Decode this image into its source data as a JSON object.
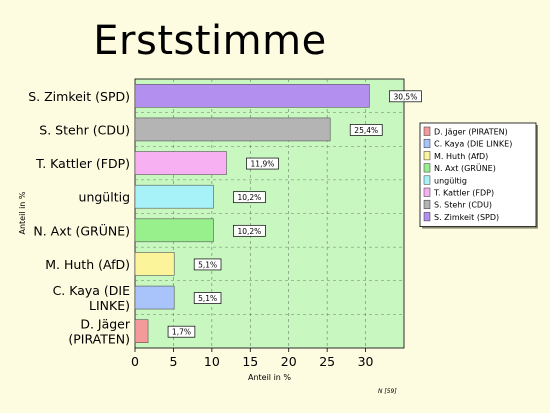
{
  "page": {
    "title": "Erststimme",
    "footnote": "N [59]"
  },
  "chart_data": {
    "type": "bar",
    "orientation": "horizontal",
    "title": "Erststimme",
    "xlabel": "Anteil in %",
    "ylabel": "Anteil in %",
    "xlim": [
      0,
      35
    ],
    "xticks": [
      0,
      5,
      10,
      15,
      20,
      25,
      30
    ],
    "grid": true,
    "legend_position": "right",
    "plot_background": "#c8f7c0",
    "bars": [
      {
        "label": [
          "S. Zimkeit (SPD)"
        ],
        "value": 30.5,
        "value_label": "30,5%",
        "color": "#b38ff0"
      },
      {
        "label": [
          "S. Stehr (CDU)"
        ],
        "value": 25.4,
        "value_label": "25,4%",
        "color": "#b4b4b4"
      },
      {
        "label": [
          "T. Kattler (FDP)"
        ],
        "value": 11.9,
        "value_label": "11,9%",
        "color": "#f7b0f2"
      },
      {
        "label": [
          "ungültig"
        ],
        "value": 10.2,
        "value_label": "10,2%",
        "color": "#a6f2f8"
      },
      {
        "label": [
          "N. Axt (GRÜNE)"
        ],
        "value": 10.2,
        "value_label": "10,2%",
        "color": "#98f08c"
      },
      {
        "label": [
          "M. Huth (AfD)"
        ],
        "value": 5.1,
        "value_label": "5,1%",
        "color": "#fbf49a"
      },
      {
        "label": [
          "C. Kaya (DIE",
          "LINKE)"
        ],
        "value": 5.1,
        "value_label": "5,1%",
        "color": "#a8c4fa"
      },
      {
        "label": [
          "D. Jäger",
          "(PIRATEN)"
        ],
        "value": 1.7,
        "value_label": "1,7%",
        "color": "#f59a9a"
      }
    ],
    "legend": [
      {
        "label": "D. Jäger (PIRATEN)",
        "color": "#f59a9a"
      },
      {
        "label": "C. Kaya (DIE LINKE)",
        "color": "#a8c4fa"
      },
      {
        "label": "M. Huth (AfD)",
        "color": "#fbf49a"
      },
      {
        "label": "N. Axt (GRÜNE)",
        "color": "#98f08c"
      },
      {
        "label": "ungültig",
        "color": "#a6f2f8"
      },
      {
        "label": "T. Kattler (FDP)",
        "color": "#f7b0f2"
      },
      {
        "label": "S. Stehr (CDU)",
        "color": "#b4b4b4"
      },
      {
        "label": "S. Zimkeit (SPD)",
        "color": "#b38ff0"
      }
    ]
  }
}
